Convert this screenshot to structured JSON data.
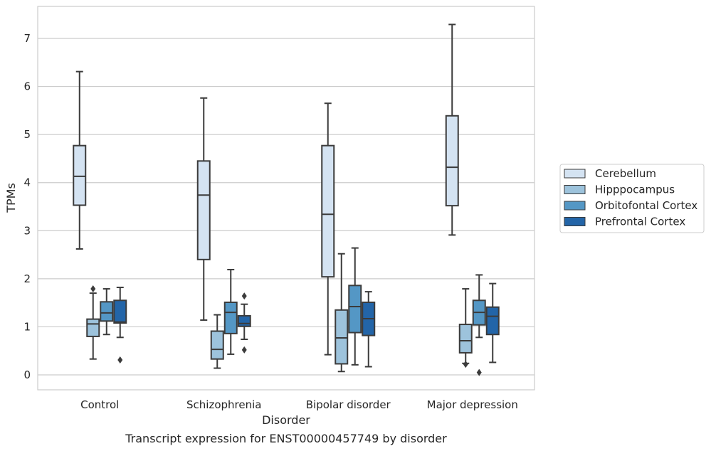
{
  "caption": "Transcript expression for ENST00000457749 by disorder",
  "chart_data": {
    "type": "box",
    "xlabel": "Disorder",
    "ylabel": "TPMs",
    "ylim": [
      -0.3,
      7.7
    ],
    "yticks": [
      0,
      1,
      2,
      3,
      4,
      5,
      6,
      7
    ],
    "grid": "horizontal",
    "legend_position": "right",
    "categories": [
      "Control",
      "Schizophrenia",
      "Bipolar disorder",
      "Major depression"
    ],
    "series": [
      {
        "name": "Cerebellum",
        "color": "#d4e3f2",
        "boxes": [
          {
            "whisker_low": 2.62,
            "q1": 3.53,
            "median": 4.13,
            "q3": 4.77,
            "whisker_high": 6.31,
            "outliers": []
          },
          {
            "whisker_low": 1.14,
            "q1": 2.4,
            "median": 3.74,
            "q3": 4.45,
            "whisker_high": 5.76,
            "outliers": []
          },
          {
            "whisker_low": 0.42,
            "q1": 2.04,
            "median": 3.34,
            "q3": 4.77,
            "whisker_high": 5.65,
            "outliers": []
          },
          {
            "whisker_low": 2.91,
            "q1": 3.52,
            "median": 4.32,
            "q3": 5.39,
            "whisker_high": 7.29,
            "outliers": []
          }
        ]
      },
      {
        "name": "Hipppocampus",
        "color": "#9dc3dc",
        "boxes": [
          {
            "whisker_low": 0.33,
            "q1": 0.8,
            "median": 1.06,
            "q3": 1.16,
            "whisker_high": 1.7,
            "outliers": [
              1.79
            ]
          },
          {
            "whisker_low": 0.14,
            "q1": 0.33,
            "median": 0.53,
            "q3": 0.91,
            "whisker_high": 1.25,
            "outliers": []
          },
          {
            "whisker_low": 0.07,
            "q1": 0.23,
            "median": 0.77,
            "q3": 1.35,
            "whisker_high": 2.52,
            "outliers": []
          },
          {
            "whisker_low": 0.24,
            "q1": 0.46,
            "median": 0.71,
            "q3": 1.05,
            "whisker_high": 1.79,
            "outliers": [
              0.22
            ]
          }
        ]
      },
      {
        "name": "Orbitofontal Cortex",
        "color": "#5497c5",
        "boxes": [
          {
            "whisker_low": 0.84,
            "q1": 1.12,
            "median": 1.29,
            "q3": 1.52,
            "whisker_high": 1.79,
            "outliers": []
          },
          {
            "whisker_low": 0.43,
            "q1": 0.86,
            "median": 1.3,
            "q3": 1.51,
            "whisker_high": 2.19,
            "outliers": []
          },
          {
            "whisker_low": 0.21,
            "q1": 0.88,
            "median": 1.42,
            "q3": 1.86,
            "whisker_high": 2.64,
            "outliers": []
          },
          {
            "whisker_low": 0.78,
            "q1": 1.04,
            "median": 1.3,
            "q3": 1.55,
            "whisker_high": 2.08,
            "outliers": [
              0.05
            ]
          }
        ]
      },
      {
        "name": "Prefrontal Cortex",
        "color": "#2365a8",
        "boxes": [
          {
            "whisker_low": 0.78,
            "q1": 1.08,
            "median": 1.1,
            "q3": 1.55,
            "whisker_high": 1.82,
            "outliers": [
              0.31
            ]
          },
          {
            "whisker_low": 0.74,
            "q1": 1.01,
            "median": 1.07,
            "q3": 1.23,
            "whisker_high": 1.47,
            "outliers": [
              1.64,
              0.52
            ]
          },
          {
            "whisker_low": 0.17,
            "q1": 0.82,
            "median": 1.17,
            "q3": 1.51,
            "whisker_high": 1.73,
            "outliers": []
          },
          {
            "whisker_low": 0.26,
            "q1": 0.84,
            "median": 1.22,
            "q3": 1.41,
            "whisker_high": 1.9,
            "outliers": []
          }
        ]
      }
    ]
  }
}
